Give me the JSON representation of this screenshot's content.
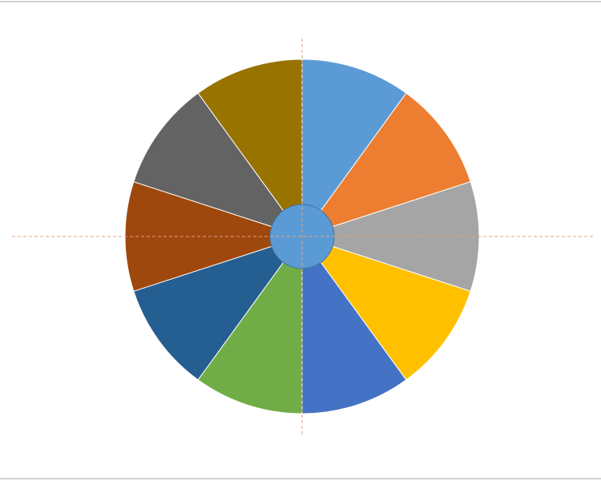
{
  "chart_data": {
    "type": "pie",
    "values": [
      10,
      10,
      10,
      10,
      10,
      10,
      10,
      10,
      10,
      10
    ],
    "colors": [
      "#5b9bd5",
      "#ed7d31",
      "#a5a5a5",
      "#ffc000",
      "#4472c4",
      "#70ad47",
      "#255e91",
      "#9e480e",
      "#636363",
      "#997300"
    ]
  }
}
